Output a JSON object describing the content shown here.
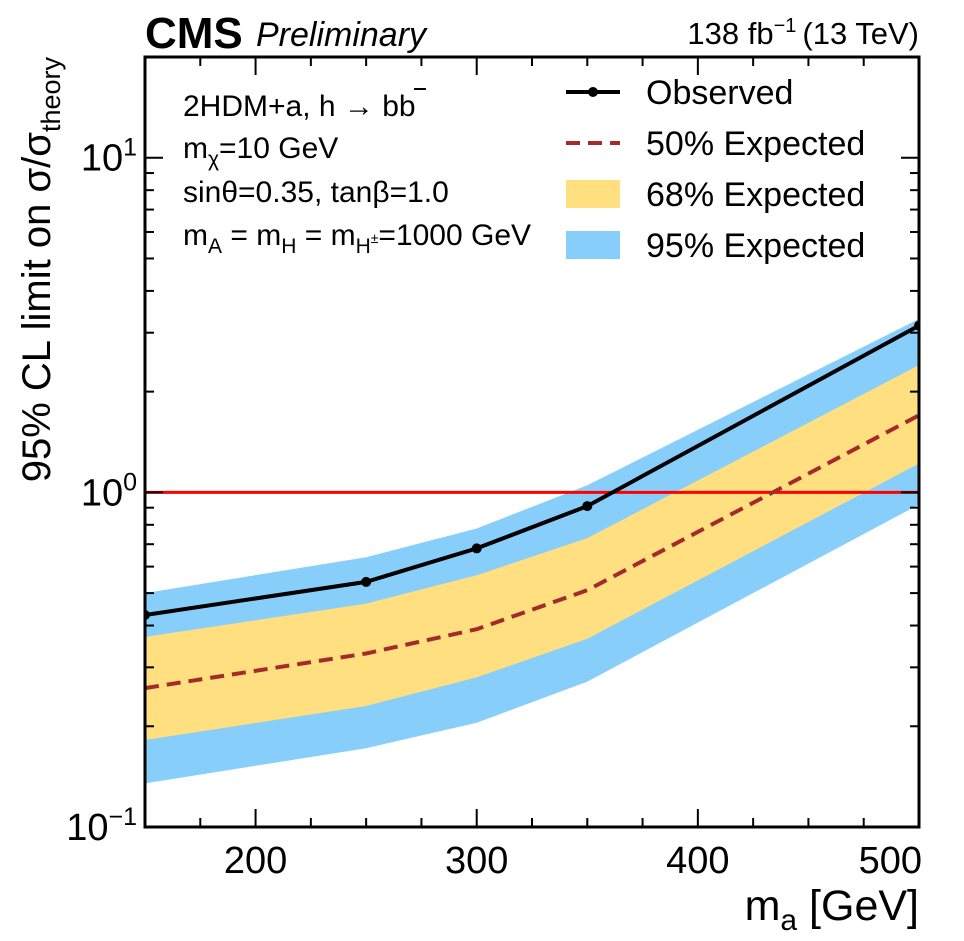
{
  "chart_data": {
    "type": "line",
    "experiment": "CMS",
    "status": "Preliminary",
    "lumi_label": "138 fb",
    "lumi_exp": "−1",
    "energy_label": "(13 TeV)",
    "xlabel_main": "m",
    "xlabel_sub": "a",
    "xlabel_unit": " [GeV]",
    "ylabel_main": "95% CL limit on σ/σ",
    "ylabel_sub": "theory",
    "x_range": [
      150,
      500
    ],
    "y_range": [
      0.1,
      20
    ],
    "y_scale": "log",
    "x_ticks": [
      200,
      300,
      400,
      500
    ],
    "y_ticks": [
      {
        "value": 0.1,
        "base": "10",
        "exp": "−1"
      },
      {
        "value": 1,
        "base": "10",
        "exp": "0"
      },
      {
        "value": 10,
        "base": "10",
        "exp": "1"
      }
    ],
    "reference_line": {
      "value": 1.0,
      "color": "#ff0000"
    },
    "x": [
      150,
      250,
      300,
      350,
      500
    ],
    "series": [
      {
        "name": "Observed",
        "style": "solid-markers",
        "color": "#000000",
        "values": [
          0.43,
          0.54,
          0.68,
          0.91,
          3.15
        ]
      },
      {
        "name": "50% Expected",
        "style": "dashed",
        "color": "#a52a2a",
        "values": [
          0.26,
          0.33,
          0.39,
          0.51,
          1.7
        ]
      }
    ],
    "bands": [
      {
        "name": "95% Expected",
        "color": "#87cefa",
        "low": [
          0.135,
          0.172,
          0.205,
          0.272,
          0.92
        ],
        "high": [
          0.5,
          0.64,
          0.78,
          1.05,
          3.3
        ]
      },
      {
        "name": "68% Expected",
        "color": "#ffdf7f",
        "low": [
          0.182,
          0.23,
          0.28,
          0.365,
          1.22
        ],
        "high": [
          0.37,
          0.465,
          0.565,
          0.73,
          2.4
        ]
      }
    ],
    "legend": {
      "placement": "top-right",
      "entries": [
        {
          "label": "Observed",
          "kind": "line-marker",
          "color": "#000000"
        },
        {
          "label": "50% Expected",
          "kind": "dashed",
          "color": "#a52a2a"
        },
        {
          "label": "68% Expected",
          "kind": "patch",
          "color": "#ffdf7f"
        },
        {
          "label": "95% Expected",
          "kind": "patch",
          "color": "#87cefa"
        }
      ]
    },
    "annotations": {
      "line1_main": "2HDM+a, h → bb",
      "line2_main": "m",
      "line2_sub": "χ",
      "line2_rest": "=10 GeV",
      "line3": "sinθ=0.35, tanβ=1.0",
      "line4_m1": "m",
      "line4_s1": "A",
      "line4_eq1": " = m",
      "line4_s2": "H",
      "line4_eq2": " = m",
      "line4_s3": "H",
      "line4_sup3": "±",
      "line4_rest": "=1000 GeV"
    }
  }
}
